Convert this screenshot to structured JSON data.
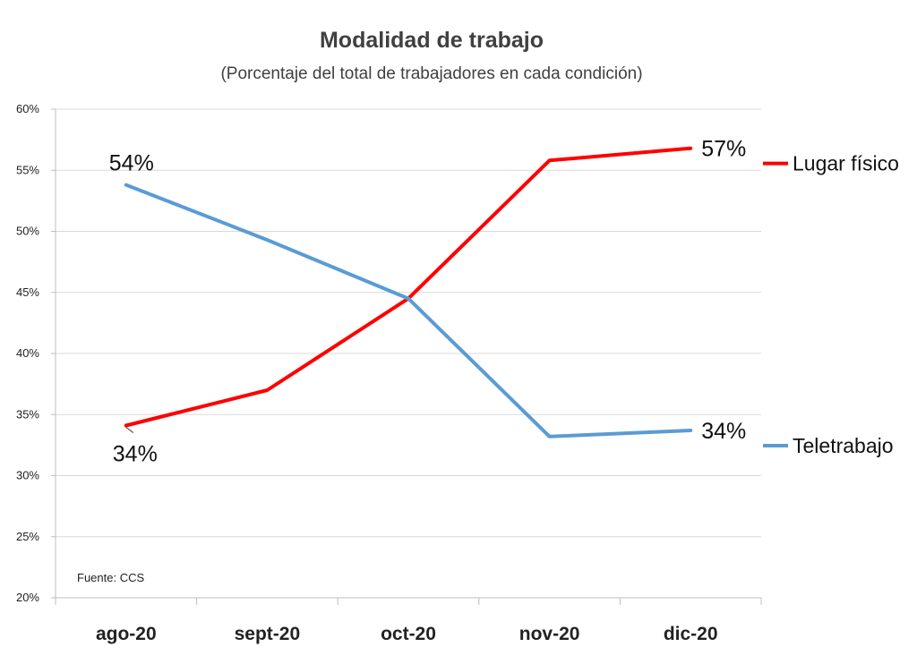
{
  "chart_data": {
    "type": "line",
    "title": "Modalidad de trabajo",
    "subtitle": "(Porcentaje del total de trabajadores en cada condición)",
    "categories": [
      "ago-20",
      "sept-20",
      "oct-20",
      "nov-20",
      "dic-20"
    ],
    "ylim": [
      20,
      60
    ],
    "yticks": [
      20,
      25,
      30,
      35,
      40,
      45,
      50,
      55,
      60
    ],
    "ytick_labels": [
      "20%",
      "25%",
      "30%",
      "35%",
      "40%",
      "45%",
      "50%",
      "55%",
      "60%"
    ],
    "grid": true,
    "legend": "right",
    "series": [
      {
        "name": "Lugar físico",
        "color": "#ff0000",
        "values": [
          34.1,
          37.0,
          44.5,
          55.8,
          56.8
        ],
        "labels": [
          "34%",
          "",
          "",
          "",
          "57%"
        ]
      },
      {
        "name": "Teletrabajo",
        "color": "#5b9bd5",
        "values": [
          53.8,
          49.3,
          44.5,
          33.2,
          33.7
        ],
        "labels": [
          "54%",
          "",
          "",
          "",
          "34%"
        ]
      }
    ],
    "source": "Fuente: CCS"
  }
}
